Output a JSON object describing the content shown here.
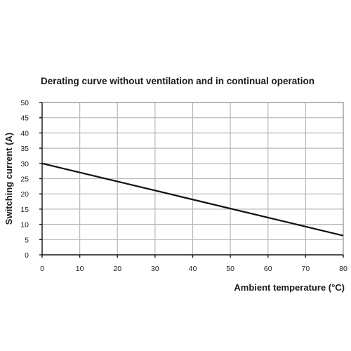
{
  "chart_data": {
    "type": "line",
    "title": "Derating curve without ventilation and in continual operation",
    "xlabel": "Ambient temperature (°C)",
    "ylabel": "Switching current (A)",
    "xlim": [
      0,
      80
    ],
    "ylim": [
      0,
      50
    ],
    "xticks": [
      0,
      10,
      20,
      30,
      40,
      50,
      60,
      70,
      80
    ],
    "yticks": [
      0,
      5,
      10,
      15,
      20,
      25,
      30,
      35,
      40,
      45,
      50
    ],
    "grid": true,
    "series": [
      {
        "x": [
          0,
          80
        ],
        "y": [
          30,
          6.3
        ]
      }
    ]
  }
}
